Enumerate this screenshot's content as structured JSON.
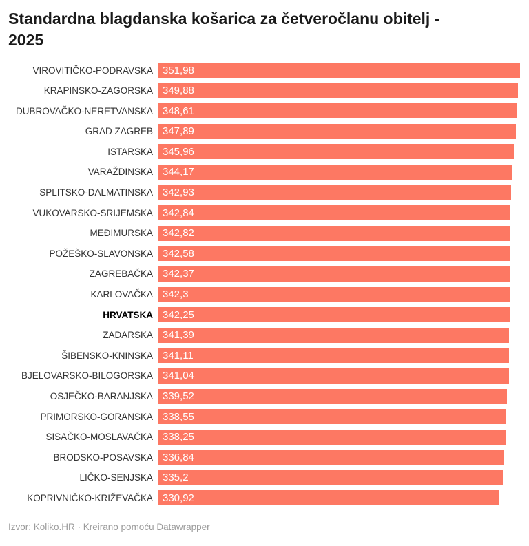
{
  "title": {
    "line1": "Standardna blagdanska košarica za četveročlanu obitelj -",
    "line2": "2025",
    "full": "Standardna blagdanska košarica za četveročlanu obitelj - 2025"
  },
  "footer": {
    "source_line": "Izvor: Koliko.HR · Kreirano pomoću Datawrapper"
  },
  "colors": {
    "bar": "#fd7863",
    "title": "#1a1a1a",
    "label": "#333333",
    "value_text": "#ffffff",
    "footer_text": "#9b9b9b",
    "background": "#ffffff"
  },
  "chart_data": {
    "type": "bar",
    "orientation": "horizontal",
    "title": "Standardna blagdanska košarica za četveročlanu obitelj - 2025",
    "xlabel": "",
    "ylabel": "",
    "xlim": [
      0,
      351.98
    ],
    "grid": false,
    "legend": false,
    "emphasized_category": "HRVATSKA",
    "value_format": "decimal comma",
    "categories": [
      "VIROVITIČKO-PODRAVSKA",
      "KRAPINSKO-ZAGORSKA",
      "DUBROVAČKO-NERETVANSKA",
      "GRAD ZAGREB",
      "ISTARSKA",
      "VARAŽDINSKA",
      "SPLITSKO-DALMATINSKA",
      "VUKOVARSKO-SRIJEMSKA",
      "MEĐIMURSKA",
      "POŽEŠKO-SLAVONSKA",
      "ZAGREBAČKA",
      "KARLOVAČKA",
      "HRVATSKA",
      "ZADARSKA",
      "ŠIBENSKO-KNINSKA",
      "BJELOVARSKO-BILOGORSKA",
      "OSJEČKO-BARANJSKA",
      "PRIMORSKO-GORANSKA",
      "SISAČKO-MOSLAVAČKA",
      "BRODSKO-POSAVSKA",
      "LIČKO-SENJSKA",
      "KOPRIVNIČKO-KRIŽEVAČKA"
    ],
    "values": [
      351.98,
      349.88,
      348.61,
      347.89,
      345.96,
      344.17,
      342.93,
      342.84,
      342.82,
      342.58,
      342.37,
      342.3,
      342.25,
      341.39,
      341.11,
      341.04,
      339.52,
      338.55,
      338.25,
      336.84,
      335.2,
      330.92
    ],
    "value_labels": [
      "351,98",
      "349,88",
      "348,61",
      "347,89",
      "345,96",
      "344,17",
      "342,93",
      "342,84",
      "342,82",
      "342,58",
      "342,37",
      "342,3",
      "342,25",
      "341,39",
      "341,11",
      "341,04",
      "339,52",
      "338,55",
      "338,25",
      "336,84",
      "335,2",
      "330,92"
    ]
  }
}
